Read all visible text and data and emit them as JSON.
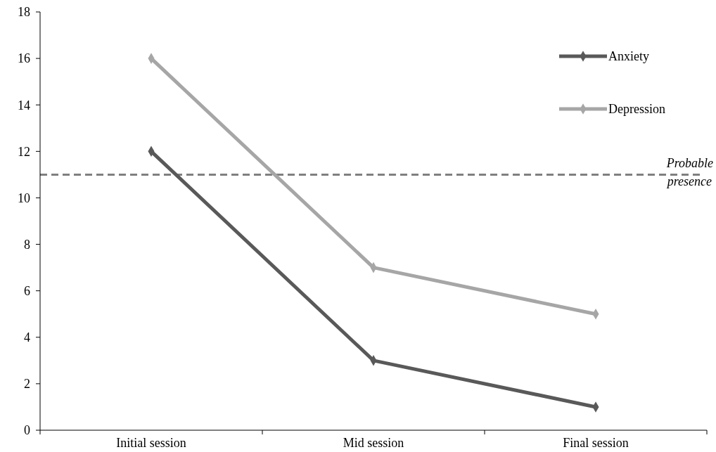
{
  "chart_data": {
    "type": "line",
    "categories": [
      "Initial session",
      "Mid session",
      "Final session"
    ],
    "series": [
      {
        "name": "Anxiety",
        "color": "#595959",
        "values": [
          12,
          3,
          1
        ]
      },
      {
        "name": "Depression",
        "color": "#a6a6a6",
        "values": [
          16,
          7,
          5
        ]
      }
    ],
    "ylim": [
      0,
      18
    ],
    "yticks": [
      0,
      2,
      4,
      6,
      8,
      10,
      12,
      14,
      16,
      18
    ],
    "grid": false,
    "legend": "top right",
    "marker": "diamond",
    "line_style": "solid",
    "ref_lines": [
      {
        "axis": "y",
        "value": 11,
        "label": "Probable presence",
        "color": "#808080",
        "line_style": "dashed"
      }
    ]
  }
}
